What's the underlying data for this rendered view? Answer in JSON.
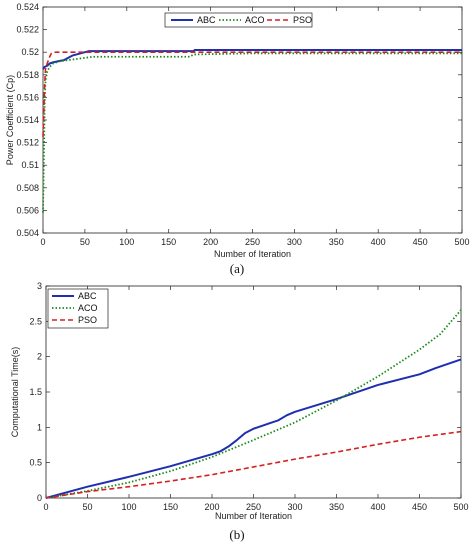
{
  "chart_data": [
    {
      "type": "line",
      "caption": "(a)",
      "xlabel": "Number of Iteration",
      "ylabel": "Power Coefficient (Cp)",
      "xlim": [
        0,
        500
      ],
      "ylim": [
        0.504,
        0.524
      ],
      "xticks": [
        0,
        50,
        100,
        150,
        200,
        250,
        300,
        350,
        400,
        450,
        500
      ],
      "yticks": [
        0.504,
        0.506,
        0.508,
        0.51,
        0.512,
        0.514,
        0.516,
        0.518,
        0.52,
        0.522,
        0.524
      ],
      "ytick_labels": [
        "0.504",
        "0.506",
        "0.508",
        "0.51",
        "0.512",
        "0.514",
        "0.516",
        "0.518",
        "0.52",
        "0.522",
        "0.524"
      ],
      "grid": false,
      "legend_position": "top-center",
      "series": [
        {
          "name": "ABC",
          "color": "#1f2fb0",
          "dash": "solid",
          "x": [
            0,
            2,
            5,
            8,
            12,
            18,
            25,
            30,
            35,
            40,
            45,
            50,
            55,
            60,
            100,
            150,
            180,
            181,
            250,
            300,
            400,
            500
          ],
          "y": [
            0.5185,
            0.5187,
            0.5188,
            0.519,
            0.5191,
            0.5192,
            0.5193,
            0.5195,
            0.5197,
            0.5198,
            0.5199,
            0.52,
            0.5201,
            0.5201,
            0.5201,
            0.5201,
            0.5201,
            0.5202,
            0.5202,
            0.5202,
            0.5202,
            0.5202
          ]
        },
        {
          "name": "ACO",
          "color": "#1a8a1a",
          "dash": "dotted",
          "x": [
            0,
            1,
            2,
            3,
            5,
            8,
            12,
            20,
            40,
            60,
            100,
            150,
            175,
            180,
            250,
            300,
            400,
            500
          ],
          "y": [
            0.5058,
            0.5105,
            0.5155,
            0.5175,
            0.5183,
            0.5187,
            0.519,
            0.5192,
            0.5194,
            0.5196,
            0.5196,
            0.5196,
            0.5196,
            0.5198,
            0.5199,
            0.5199,
            0.5199,
            0.5199
          ]
        },
        {
          "name": "PSO",
          "color": "#d42020",
          "dash": "dashed",
          "x": [
            0,
            1,
            2,
            3,
            5,
            8,
            10,
            15,
            30,
            100,
            200,
            300,
            400,
            500
          ],
          "y": [
            0.5125,
            0.515,
            0.5172,
            0.5185,
            0.519,
            0.5196,
            0.5199,
            0.52,
            0.52,
            0.52,
            0.52,
            0.52,
            0.52,
            0.52
          ]
        }
      ]
    },
    {
      "type": "line",
      "caption": "(b)",
      "xlabel": "Number of Iteration",
      "ylabel": "Computational Time(s)",
      "xlim": [
        0,
        500
      ],
      "ylim": [
        0,
        3
      ],
      "xticks": [
        0,
        50,
        100,
        150,
        200,
        250,
        300,
        350,
        400,
        450,
        500
      ],
      "yticks": [
        0,
        0.5,
        1,
        1.5,
        2,
        2.5,
        3
      ],
      "ytick_labels": [
        "0",
        "0.5",
        "1",
        "1.5",
        "2",
        "2.5",
        "3"
      ],
      "grid": false,
      "legend_position": "top-left",
      "series": [
        {
          "name": "ABC",
          "color": "#1f2fb0",
          "dash": "solid",
          "x": [
            0,
            50,
            100,
            150,
            200,
            210,
            220,
            230,
            240,
            250,
            260,
            270,
            280,
            290,
            300,
            350,
            400,
            450,
            470,
            500
          ],
          "y": [
            0.0,
            0.16,
            0.3,
            0.45,
            0.62,
            0.66,
            0.73,
            0.82,
            0.92,
            0.98,
            1.02,
            1.06,
            1.1,
            1.17,
            1.22,
            1.4,
            1.6,
            1.75,
            1.84,
            1.96
          ]
        },
        {
          "name": "ACO",
          "color": "#1a8a1a",
          "dash": "dotted",
          "x": [
            0,
            50,
            100,
            150,
            200,
            250,
            300,
            350,
            400,
            450,
            475,
            500
          ],
          "y": [
            0.0,
            0.1,
            0.22,
            0.38,
            0.58,
            0.82,
            1.07,
            1.38,
            1.72,
            2.1,
            2.32,
            2.66
          ]
        },
        {
          "name": "PSO",
          "color": "#d42020",
          "dash": "dashed",
          "x": [
            0,
            50,
            100,
            150,
            200,
            250,
            300,
            350,
            400,
            450,
            500
          ],
          "y": [
            0.0,
            0.09,
            0.16,
            0.24,
            0.33,
            0.44,
            0.55,
            0.65,
            0.76,
            0.86,
            0.94
          ]
        }
      ]
    }
  ]
}
